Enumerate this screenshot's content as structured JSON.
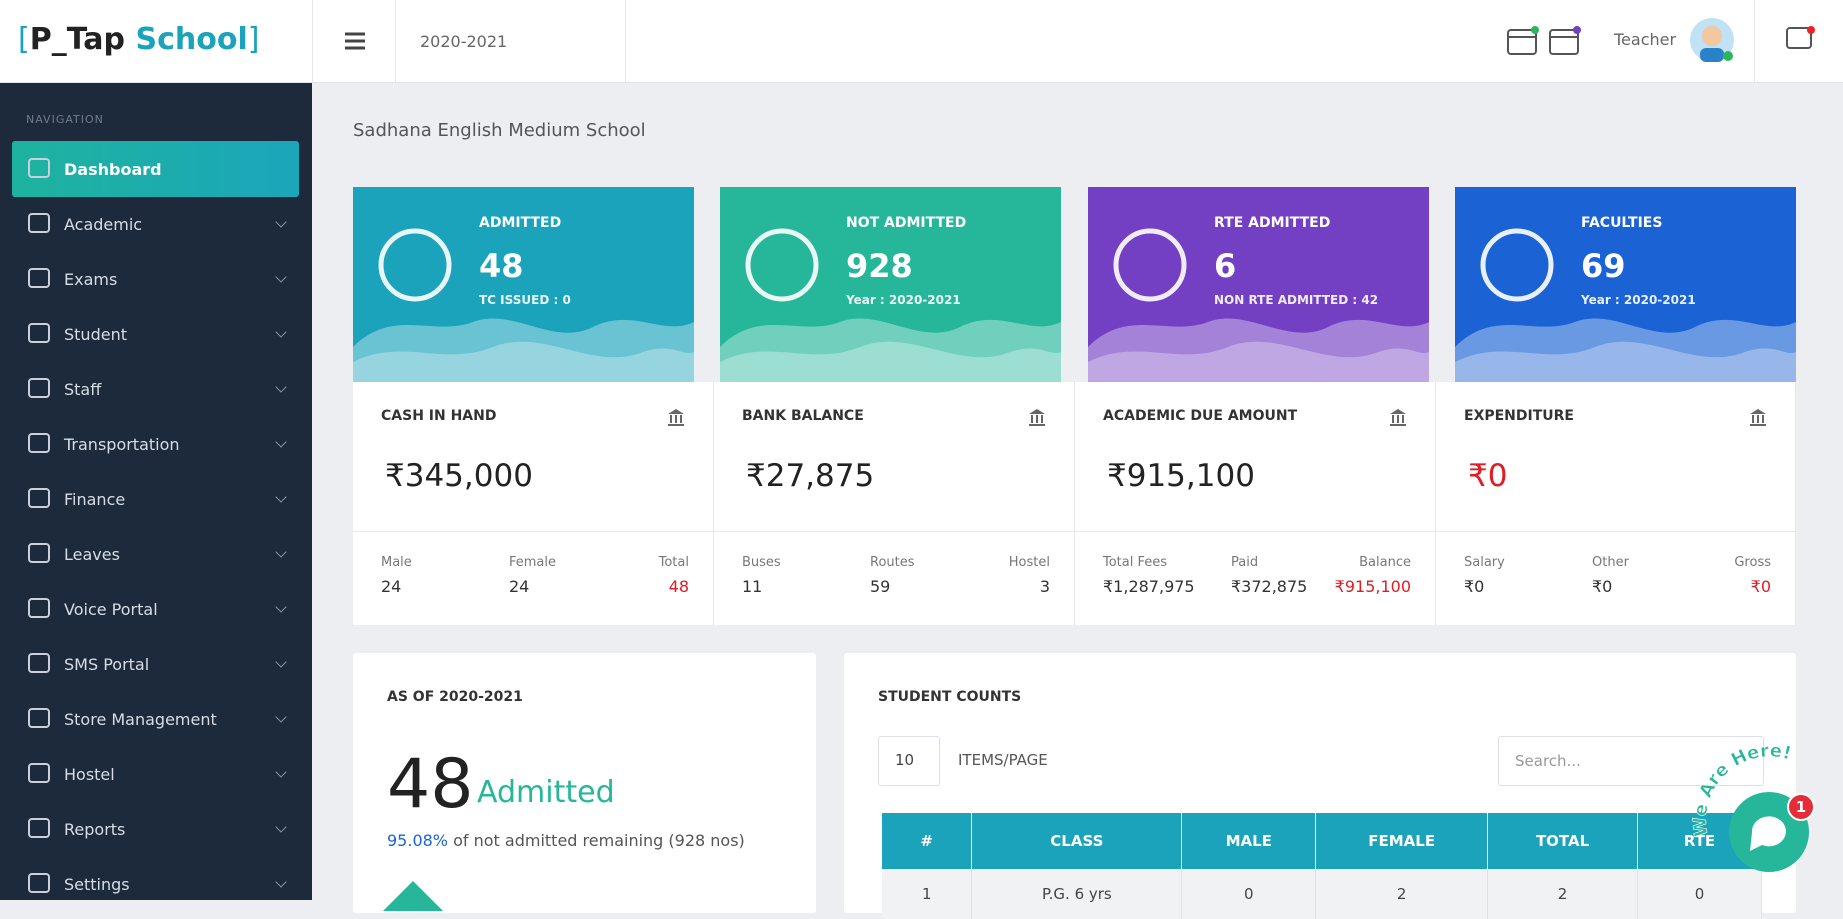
{
  "brand": {
    "open": "[",
    "name": "P_Tap",
    "accent": "School",
    "close": "]"
  },
  "header": {
    "year": "2020-2021",
    "user": "Teacher"
  },
  "nav": {
    "heading": "NAVIGATION",
    "items": [
      "Dashboard",
      "Academic",
      "Exams",
      "Student",
      "Staff",
      "Transportation",
      "Finance",
      "Leaves",
      "Voice Portal",
      "SMS Portal",
      "Store Management",
      "Hostel",
      "Reports",
      "Settings"
    ]
  },
  "school": "Sadhana English Medium School",
  "stat_cards": [
    {
      "label": "ADMITTED",
      "value": "48",
      "sub": "TC ISSUED : 0",
      "color": "#1aa3ba"
    },
    {
      "label": "NOT ADMITTED",
      "value": "928",
      "sub": "Year : 2020-2021",
      "color": "#26b79a"
    },
    {
      "label": "RTE ADMITTED",
      "value": "6",
      "sub": "NON RTE ADMITTED : 42",
      "color": "#7440c3"
    },
    {
      "label": "FACULTIES",
      "value": "69",
      "sub": "Year : 2020-2021",
      "color": "#1b63d4"
    }
  ],
  "finance_cards": [
    {
      "title": "CASH IN HAND",
      "value": "₹345,000",
      "details": [
        {
          "label": "Male",
          "value": "24"
        },
        {
          "label": "Female",
          "value": "24"
        },
        {
          "label": "Total",
          "value": "48"
        }
      ]
    },
    {
      "title": "BANK BALANCE",
      "value": "₹27,875",
      "details": [
        {
          "label": "Buses",
          "value": "11"
        },
        {
          "label": "Routes",
          "value": "59"
        },
        {
          "label": "Hostel",
          "value": "3"
        }
      ]
    },
    {
      "title": "ACADEMIC DUE AMOUNT",
      "value": "₹915,100",
      "details": [
        {
          "label": "Total Fees",
          "value": "₹1,287,975"
        },
        {
          "label": "Paid",
          "value": "₹372,875"
        },
        {
          "label": "Balance",
          "value": "₹915,100"
        }
      ]
    },
    {
      "title": "EXPENDITURE",
      "value": "₹0",
      "details": [
        {
          "label": "Salary",
          "value": "₹0"
        },
        {
          "label": "Other",
          "value": "₹0"
        },
        {
          "label": "Gross",
          "value": "₹0"
        }
      ]
    }
  ],
  "admitted_panel": {
    "title": "AS OF 2020-2021",
    "count": "48",
    "label": "Admitted",
    "percent": "95.08%",
    "note": "of not admitted remaining (928 nos)"
  },
  "student_counts": {
    "title": "STUDENT COUNTS",
    "page_size": "10",
    "page_label": "ITEMS/PAGE",
    "search": "Search...",
    "columns": [
      "#",
      "CLASS",
      "MALE",
      "FEMALE",
      "TOTAL",
      "RTE"
    ],
    "rows": [
      [
        "1",
        "P.G. 6 yrs",
        "0",
        "2",
        "2",
        "0"
      ]
    ]
  },
  "widget": {
    "label": "We Are Here!",
    "badge": "1"
  }
}
